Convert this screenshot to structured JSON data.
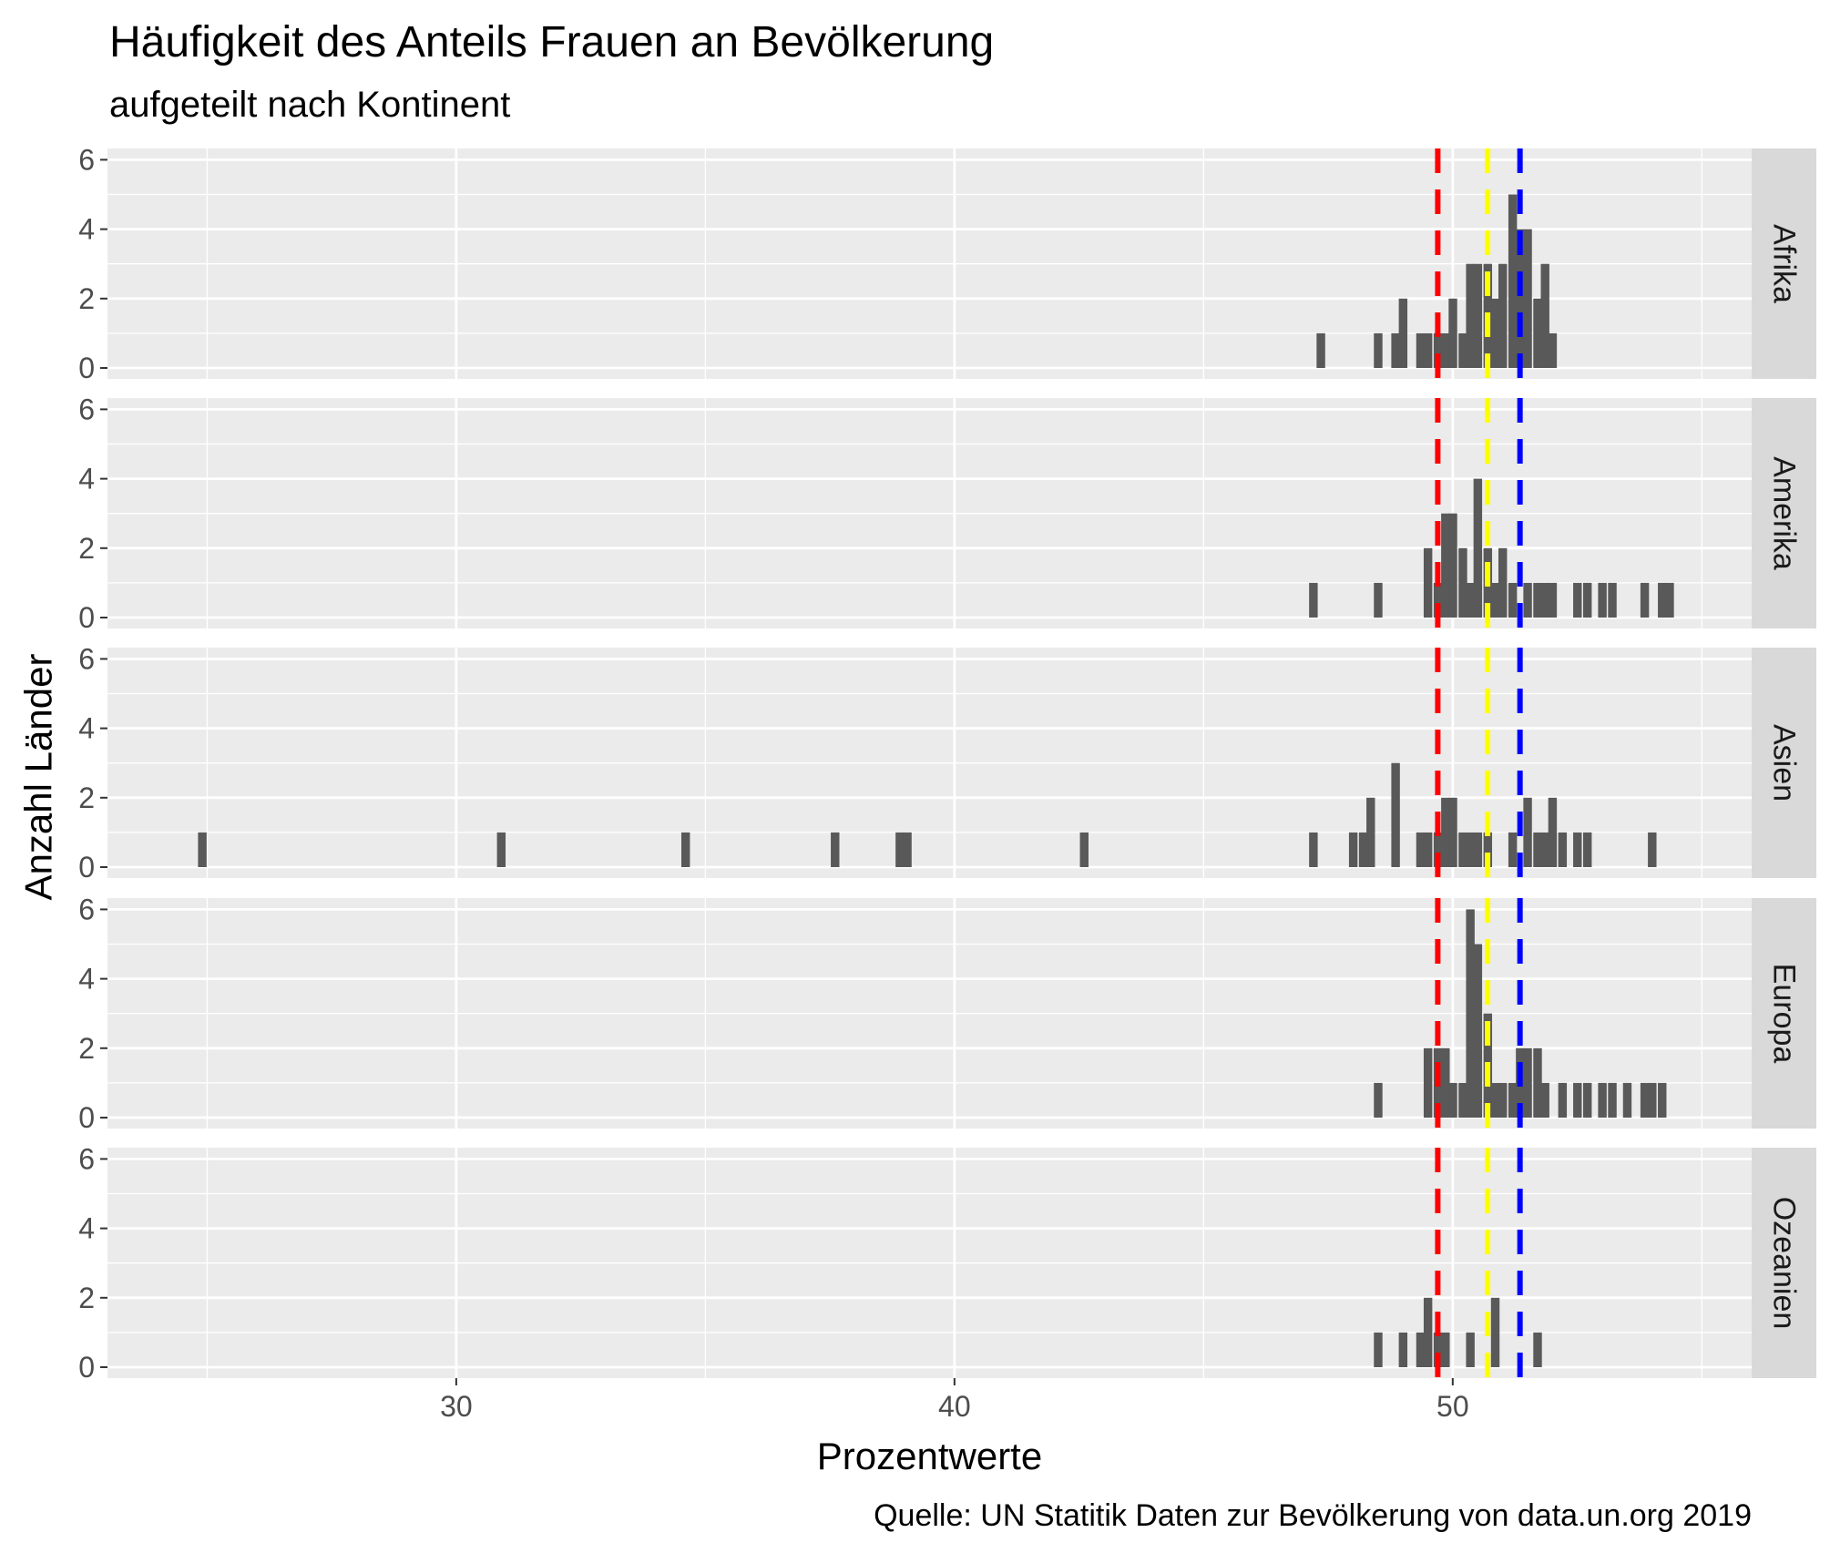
{
  "chart_data": {
    "type": "bar",
    "title": "Häufigkeit des Anteils Frauen an Bevölkerung",
    "subtitle": "aufgeteilt nach Kontinent",
    "xlabel": "Prozentwerte",
    "ylabel": "Anzahl Länder",
    "caption": "Quelle: UN Statitik Daten zur Bevölkerung von data.un.org 2019",
    "xlim": [
      23,
      56
    ],
    "ylim": [
      0,
      6
    ],
    "x_ticks": [
      30,
      40,
      50
    ],
    "y_ticks": [
      0,
      2,
      4,
      6
    ],
    "bin_width": 0.165,
    "grid": true,
    "colors": {
      "panel_background": "#ebebeb",
      "grid": "#ffffff",
      "bar": "#595959",
      "strip": "#d9d9d9",
      "line_red": "#ff0000",
      "line_yellow": "#ffff00",
      "line_blue": "#0000ff"
    },
    "reference_lines": [
      {
        "x": 49.7,
        "color": "#ff0000",
        "style": "dashed"
      },
      {
        "x": 50.7,
        "color": "#ffff00",
        "style": "dashed"
      },
      {
        "x": 51.35,
        "color": "#0000ff",
        "style": "dashed"
      }
    ],
    "facets": [
      {
        "name": "Afrika",
        "bins": [
          [
            47.35,
            1
          ],
          [
            48.5,
            1
          ],
          [
            48.85,
            1
          ],
          [
            49.0,
            2
          ],
          [
            49.35,
            1
          ],
          [
            49.5,
            1
          ],
          [
            49.7,
            1
          ],
          [
            49.85,
            1
          ],
          [
            50.0,
            2
          ],
          [
            50.2,
            1
          ],
          [
            50.35,
            3
          ],
          [
            50.5,
            3
          ],
          [
            50.7,
            3
          ],
          [
            50.85,
            2
          ],
          [
            51.0,
            3
          ],
          [
            51.2,
            5
          ],
          [
            51.35,
            4
          ],
          [
            51.5,
            4
          ],
          [
            51.7,
            2
          ],
          [
            51.85,
            3
          ],
          [
            52.0,
            1
          ]
        ]
      },
      {
        "name": "Amerika",
        "bins": [
          [
            47.2,
            1
          ],
          [
            48.5,
            1
          ],
          [
            49.5,
            2
          ],
          [
            49.7,
            1
          ],
          [
            49.85,
            3
          ],
          [
            50.0,
            3
          ],
          [
            50.2,
            2
          ],
          [
            50.35,
            1
          ],
          [
            50.5,
            4
          ],
          [
            50.7,
            2
          ],
          [
            50.85,
            1
          ],
          [
            51.0,
            2
          ],
          [
            51.2,
            1
          ],
          [
            51.5,
            1
          ],
          [
            51.7,
            1
          ],
          [
            51.85,
            1
          ],
          [
            52.0,
            1
          ],
          [
            52.5,
            1
          ],
          [
            52.7,
            1
          ],
          [
            53.0,
            1
          ],
          [
            53.2,
            1
          ],
          [
            53.85,
            1
          ],
          [
            54.2,
            1
          ],
          [
            54.35,
            1
          ]
        ]
      },
      {
        "name": "Asien",
        "bins": [
          [
            24.9,
            1
          ],
          [
            30.9,
            1
          ],
          [
            34.6,
            1
          ],
          [
            37.6,
            1
          ],
          [
            38.9,
            1
          ],
          [
            39.05,
            1
          ],
          [
            42.6,
            1
          ],
          [
            47.2,
            1
          ],
          [
            48.0,
            1
          ],
          [
            48.2,
            1
          ],
          [
            48.35,
            2
          ],
          [
            48.85,
            3
          ],
          [
            49.35,
            1
          ],
          [
            49.5,
            1
          ],
          [
            49.7,
            1
          ],
          [
            49.85,
            2
          ],
          [
            50.0,
            2
          ],
          [
            50.2,
            1
          ],
          [
            50.35,
            1
          ],
          [
            50.5,
            1
          ],
          [
            50.7,
            1
          ],
          [
            51.2,
            1
          ],
          [
            51.5,
            2
          ],
          [
            51.7,
            1
          ],
          [
            51.85,
            1
          ],
          [
            52.0,
            2
          ],
          [
            52.2,
            1
          ],
          [
            52.5,
            1
          ],
          [
            52.7,
            1
          ],
          [
            54.0,
            1
          ]
        ]
      },
      {
        "name": "Europa",
        "bins": [
          [
            48.5,
            1
          ],
          [
            49.5,
            2
          ],
          [
            49.7,
            2
          ],
          [
            49.85,
            2
          ],
          [
            50.0,
            1
          ],
          [
            50.2,
            1
          ],
          [
            50.35,
            6
          ],
          [
            50.5,
            5
          ],
          [
            50.7,
            3
          ],
          [
            50.85,
            1
          ],
          [
            51.0,
            1
          ],
          [
            51.2,
            1
          ],
          [
            51.35,
            2
          ],
          [
            51.5,
            2
          ],
          [
            51.7,
            2
          ],
          [
            51.85,
            1
          ],
          [
            52.2,
            1
          ],
          [
            52.5,
            1
          ],
          [
            52.7,
            1
          ],
          [
            53.0,
            1
          ],
          [
            53.2,
            1
          ],
          [
            53.5,
            1
          ],
          [
            53.85,
            1
          ],
          [
            54.0,
            1
          ],
          [
            54.2,
            1
          ]
        ]
      },
      {
        "name": "Ozeanien",
        "bins": [
          [
            48.5,
            1
          ],
          [
            49.0,
            1
          ],
          [
            49.35,
            1
          ],
          [
            49.5,
            2
          ],
          [
            49.7,
            1
          ],
          [
            49.85,
            1
          ],
          [
            50.35,
            1
          ],
          [
            50.85,
            2
          ],
          [
            51.7,
            1
          ]
        ]
      }
    ]
  }
}
